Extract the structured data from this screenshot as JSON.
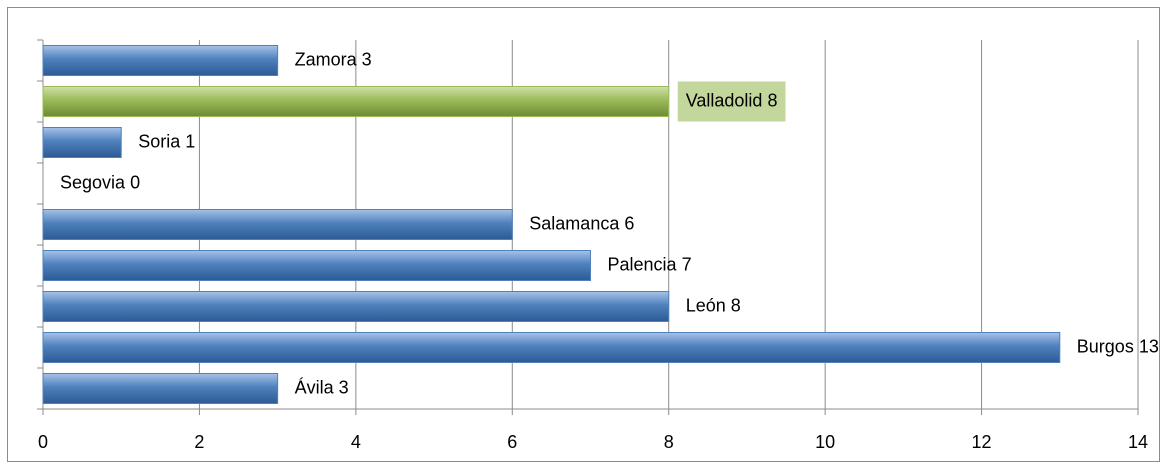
{
  "chart_data": {
    "type": "hbar",
    "categories": [
      "Ávila",
      "Burgos",
      "León",
      "Palencia",
      "Salamanca",
      "Segovia",
      "Soria",
      "Valladolid",
      "Zamora"
    ],
    "values": [
      3,
      13,
      8,
      7,
      6,
      0,
      1,
      8,
      3
    ],
    "colors": [
      "#4f81bd",
      "#4f81bd",
      "#4f81bd",
      "#4f81bd",
      "#4f81bd",
      "#4f81bd",
      "#4f81bd",
      "#9bbb59",
      "#4f81bd"
    ],
    "highlight_label_color": "#c3d69b",
    "xlim": [
      0,
      14
    ],
    "xticks": [
      0,
      2,
      4,
      6,
      8,
      10,
      12,
      14
    ],
    "grid": true
  }
}
